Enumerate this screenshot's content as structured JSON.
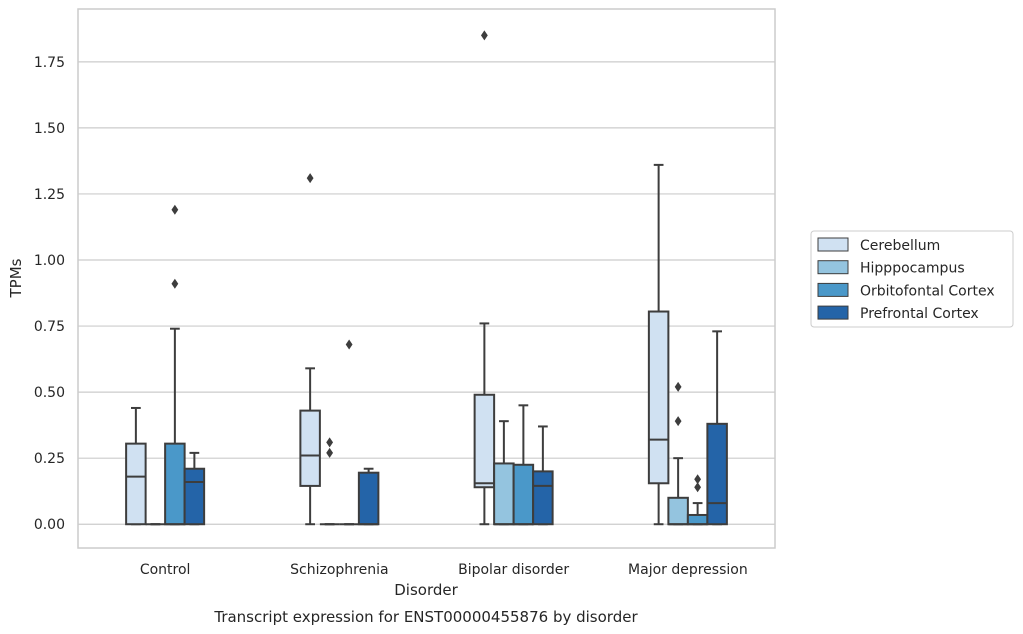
{
  "chart_data": {
    "type": "box",
    "title": "",
    "caption": "Transcript expression for ENST00000455876 by disorder",
    "xlabel": "Disorder",
    "ylabel": "TPMs",
    "ylim": [
      -0.09,
      1.95
    ],
    "yticks": [
      0.0,
      0.25,
      0.5,
      0.75,
      1.0,
      1.25,
      1.5,
      1.75
    ],
    "ytick_labels": [
      "0.00",
      "0.25",
      "0.50",
      "0.75",
      "1.00",
      "1.25",
      "1.50",
      "1.75"
    ],
    "grid": "horizontal",
    "legend_position": "right",
    "categories": [
      "Control",
      "Schizophrenia",
      "Bipolar disorder",
      "Major depression"
    ],
    "series": [
      {
        "name": "Cerebellum",
        "color": "#d0e1f2",
        "boxes": [
          {
            "q1": 0.0,
            "median": 0.18,
            "q3": 0.305,
            "whisker_low": 0.0,
            "whisker_high": 0.44,
            "outliers": []
          },
          {
            "q1": 0.145,
            "median": 0.26,
            "q3": 0.43,
            "whisker_low": 0.0,
            "whisker_high": 0.59,
            "outliers": [
              1.31
            ]
          },
          {
            "q1": 0.14,
            "median": 0.155,
            "q3": 0.49,
            "whisker_low": 0.0,
            "whisker_high": 0.76,
            "outliers": [
              1.85
            ]
          },
          {
            "q1": 0.155,
            "median": 0.32,
            "q3": 0.805,
            "whisker_low": 0.0,
            "whisker_high": 1.36,
            "outliers": []
          }
        ]
      },
      {
        "name": "Hipppocampus",
        "color": "#94c4df",
        "boxes": [
          {
            "q1": 0.0,
            "median": 0.0,
            "q3": 0.0,
            "whisker_low": 0.0,
            "whisker_high": 0.0,
            "outliers": []
          },
          {
            "q1": 0.0,
            "median": 0.0,
            "q3": 0.0,
            "whisker_low": 0.0,
            "whisker_high": 0.0,
            "outliers": [
              0.27,
              0.31
            ]
          },
          {
            "q1": 0.0,
            "median": 0.0,
            "q3": 0.23,
            "whisker_low": 0.0,
            "whisker_high": 0.39,
            "outliers": []
          },
          {
            "q1": 0.0,
            "median": 0.0,
            "q3": 0.1,
            "whisker_low": 0.0,
            "whisker_high": 0.25,
            "outliers": [
              0.39,
              0.52
            ]
          }
        ]
      },
      {
        "name": "Orbitofontal Cortex",
        "color": "#4a98c9",
        "boxes": [
          {
            "q1": 0.0,
            "median": 0.0,
            "q3": 0.305,
            "whisker_low": 0.0,
            "whisker_high": 0.74,
            "outliers": [
              0.91,
              1.19
            ]
          },
          {
            "q1": 0.0,
            "median": 0.0,
            "q3": 0.0,
            "whisker_low": 0.0,
            "whisker_high": 0.0,
            "outliers": [
              0.68
            ]
          },
          {
            "q1": 0.0,
            "median": 0.0,
            "q3": 0.225,
            "whisker_low": 0.0,
            "whisker_high": 0.45,
            "outliers": []
          },
          {
            "q1": 0.0,
            "median": 0.0,
            "q3": 0.035,
            "whisker_low": 0.0,
            "whisker_high": 0.08,
            "outliers": [
              0.14,
              0.17
            ]
          }
        ]
      },
      {
        "name": "Prefrontal Cortex",
        "color": "#2464a8",
        "boxes": [
          {
            "q1": 0.0,
            "median": 0.16,
            "q3": 0.21,
            "whisker_low": 0.0,
            "whisker_high": 0.27,
            "outliers": []
          },
          {
            "q1": 0.0,
            "median": 0.0,
            "q3": 0.195,
            "whisker_low": 0.0,
            "whisker_high": 0.21,
            "outliers": []
          },
          {
            "q1": 0.0,
            "median": 0.145,
            "q3": 0.2,
            "whisker_low": 0.0,
            "whisker_high": 0.37,
            "outliers": []
          },
          {
            "q1": 0.0,
            "median": 0.08,
            "q3": 0.38,
            "whisker_low": 0.0,
            "whisker_high": 0.73,
            "outliers": []
          }
        ]
      }
    ]
  }
}
